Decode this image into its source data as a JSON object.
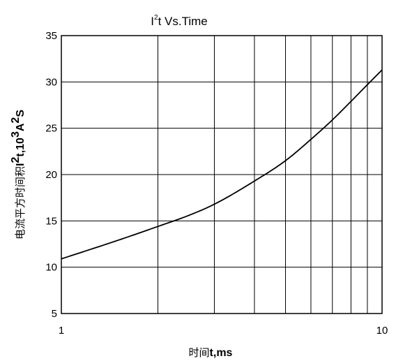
{
  "chart_data": {
    "type": "line",
    "title": {
      "base": "I",
      "sup": "2",
      "rest": "t  Vs.Time"
    },
    "xlabel": {
      "cjk": "时间",
      "rest": "t,ms"
    },
    "ylabel": {
      "cjk": "电流平方时间积",
      "i": "I",
      "sup1": "2",
      "mid": "t,10",
      "sup2": "3",
      "a": "A",
      "sup3": "2",
      "s": "S"
    },
    "x_scale": "log",
    "xlim": [
      1,
      10
    ],
    "ylim": [
      5,
      35
    ],
    "x_tick_labels": [
      "1",
      "10"
    ],
    "y_ticks": [
      5,
      10,
      15,
      20,
      25,
      30,
      35
    ],
    "y_tick_labels": [
      "5",
      "10",
      "15",
      "20",
      "25",
      "30",
      "35"
    ],
    "x_gridlines": [
      1,
      2,
      3,
      4,
      5,
      6,
      7,
      8,
      9,
      10
    ],
    "grid": true,
    "series": [
      {
        "color": "#000000",
        "x": [
          1,
          1.5,
          2,
          2.5,
          3,
          4,
          5,
          6,
          7,
          8,
          9,
          10
        ],
        "y": [
          10.9,
          12.9,
          14.4,
          15.6,
          16.8,
          19.3,
          21.5,
          23.8,
          25.9,
          27.9,
          29.7,
          31.3
        ]
      }
    ]
  }
}
